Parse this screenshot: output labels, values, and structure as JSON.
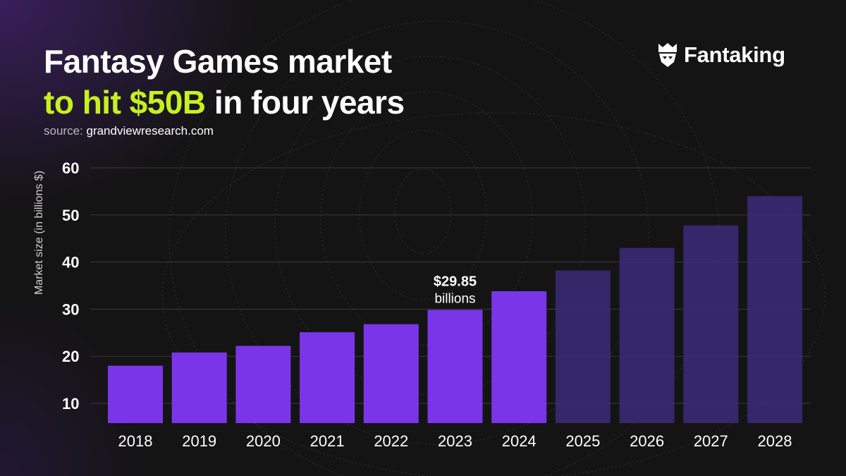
{
  "header": {
    "title_line1": "Fantasy Games market",
    "title_accent": "to hit $50B",
    "title_rest": " in four years",
    "source_prefix": "source: ",
    "source_name": "grandviewresearch.com"
  },
  "brand": {
    "name": "Fantaking",
    "icon": "fantaking-logo-icon"
  },
  "colors": {
    "background": "#141414",
    "accent": "#c6f01f",
    "bar": "#7b35e8",
    "bar_forecast": "#3b2a78"
  },
  "chart_data": {
    "type": "bar",
    "title": "Fantasy Games market to hit $50B in four years",
    "ylabel": "Market size (in billions $)",
    "xlabel": "",
    "ylim": [
      5,
      60
    ],
    "yticks": [
      10,
      20,
      30,
      40,
      50,
      60
    ],
    "grid": true,
    "categories": [
      "2018",
      "2019",
      "2020",
      "2021",
      "2022",
      "2023",
      "2024",
      "2025",
      "2026",
      "2027",
      "2028"
    ],
    "values": [
      18,
      20.8,
      22.2,
      25.1,
      26.8,
      29.85,
      33.8,
      38.2,
      43,
      47.8,
      54
    ],
    "forecast_from_index": 7,
    "annotation": {
      "index": 5,
      "value": "$29.85",
      "unit": "billions"
    }
  }
}
